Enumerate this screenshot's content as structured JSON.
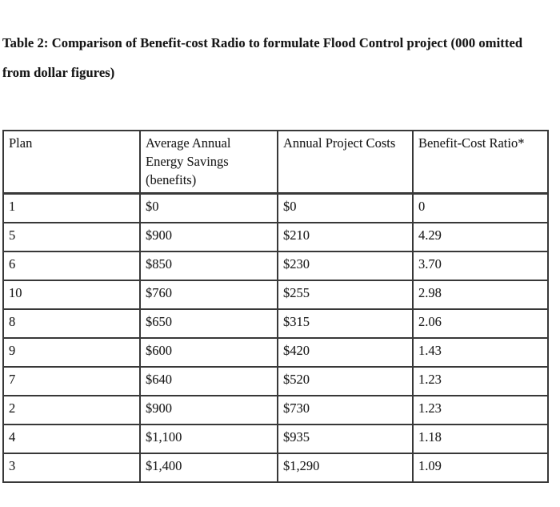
{
  "document": {
    "title_line1": "Table 2: Comparison of Benefit-cost Radio to formulate Flood Control project (000 omitted",
    "title_line2": "from dollar figures)"
  },
  "table": {
    "header": {
      "plan": "Plan",
      "savings_line1": "Average Annual",
      "savings_line2": "Energy Savings",
      "savings_line3": "(benefits)",
      "costs": "Annual Project Costs",
      "ratio": "Benefit-Cost Ratio*"
    },
    "rows": [
      [
        "1",
        "$0",
        "$0",
        "0"
      ],
      [
        "5",
        "$900",
        "$210",
        "4.29"
      ],
      [
        "6",
        "$850",
        "$230",
        "3.70"
      ],
      [
        "10",
        "$760",
        "$255",
        "2.98"
      ],
      [
        "8",
        "$650",
        "$315",
        "2.06"
      ],
      [
        "9",
        "$600",
        "$420",
        "1.43"
      ],
      [
        "7",
        "$640",
        "$520",
        "1.23"
      ],
      [
        "2",
        "$900",
        "$730",
        "1.23"
      ],
      [
        "4",
        "$1,100",
        "$935",
        "1.18"
      ],
      [
        "3",
        "$1,400",
        "$1,290",
        "1.09"
      ]
    ]
  },
  "colors": {
    "background": "#ffffff",
    "text": "#1c1c1c",
    "border": "#383838"
  }
}
